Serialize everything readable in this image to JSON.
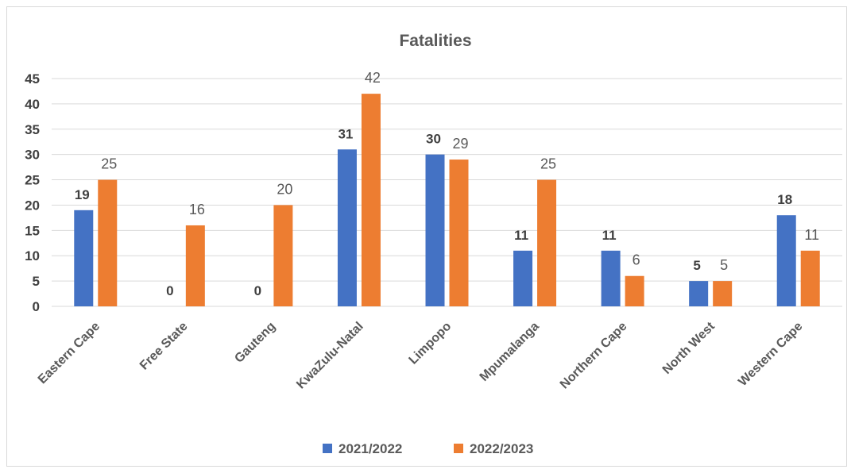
{
  "chart_data": {
    "type": "bar",
    "title": "Fatalities",
    "categories": [
      "Eastern Cape",
      "Free State",
      "Gauteng",
      "KwaZulu-Natal",
      "Limpopo",
      "Mpumalanga",
      "Northern Cape",
      "North West",
      "Western Cape"
    ],
    "series": [
      {
        "name": "2021/2022",
        "values": [
          19,
          0,
          0,
          31,
          30,
          11,
          11,
          5,
          18
        ],
        "color": "#4472c4"
      },
      {
        "name": "2022/2023",
        "values": [
          25,
          16,
          20,
          42,
          29,
          25,
          6,
          5,
          11
        ],
        "color": "#ed7d31"
      }
    ],
    "yticks": [
      "0",
      "5",
      "10",
      "15",
      "20",
      "25",
      "30",
      "35",
      "40",
      "45"
    ],
    "ylim": [
      0,
      45
    ],
    "grid": true,
    "legend_position": "bottom"
  }
}
